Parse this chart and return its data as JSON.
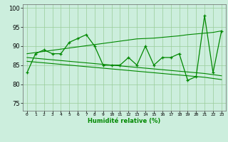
{
  "x": [
    0,
    1,
    2,
    3,
    4,
    5,
    6,
    7,
    8,
    9,
    10,
    11,
    12,
    13,
    14,
    15,
    16,
    17,
    18,
    19,
    20,
    21,
    22,
    23
  ],
  "y_main": [
    83,
    88,
    89,
    88,
    88,
    91,
    92,
    93,
    90,
    85,
    85,
    85,
    87,
    85,
    90,
    85,
    87,
    87,
    88,
    81,
    82,
    98,
    83,
    94
  ],
  "y_upper": [
    88.0,
    88.3,
    88.6,
    88.9,
    89.2,
    89.5,
    89.8,
    90.1,
    90.4,
    90.7,
    91.0,
    91.3,
    91.6,
    91.9,
    92.0,
    92.1,
    92.3,
    92.5,
    92.7,
    93.0,
    93.2,
    93.4,
    93.6,
    94.0
  ],
  "y_mid": [
    87.0,
    86.8,
    86.6,
    86.4,
    86.2,
    86.0,
    85.8,
    85.6,
    85.4,
    85.2,
    85.0,
    84.8,
    84.6,
    84.4,
    84.2,
    84.0,
    83.8,
    83.6,
    83.4,
    83.2,
    83.0,
    82.8,
    82.5,
    82.2
  ],
  "y_lower": [
    86.0,
    85.8,
    85.6,
    85.4,
    85.2,
    85.0,
    84.8,
    84.6,
    84.4,
    84.2,
    84.0,
    83.8,
    83.6,
    83.4,
    83.2,
    83.0,
    82.8,
    82.6,
    82.4,
    82.2,
    82.0,
    81.8,
    81.5,
    81.2
  ],
  "bg_color": "#cceedd",
  "line_color": "#008800",
  "grid_color": "#99cc99",
  "xlabel": "Humidité relative (%)",
  "ylim": [
    73,
    101
  ],
  "yticks": [
    75,
    80,
    85,
    90,
    95,
    100
  ],
  "xlim": [
    -0.5,
    23.5
  ]
}
